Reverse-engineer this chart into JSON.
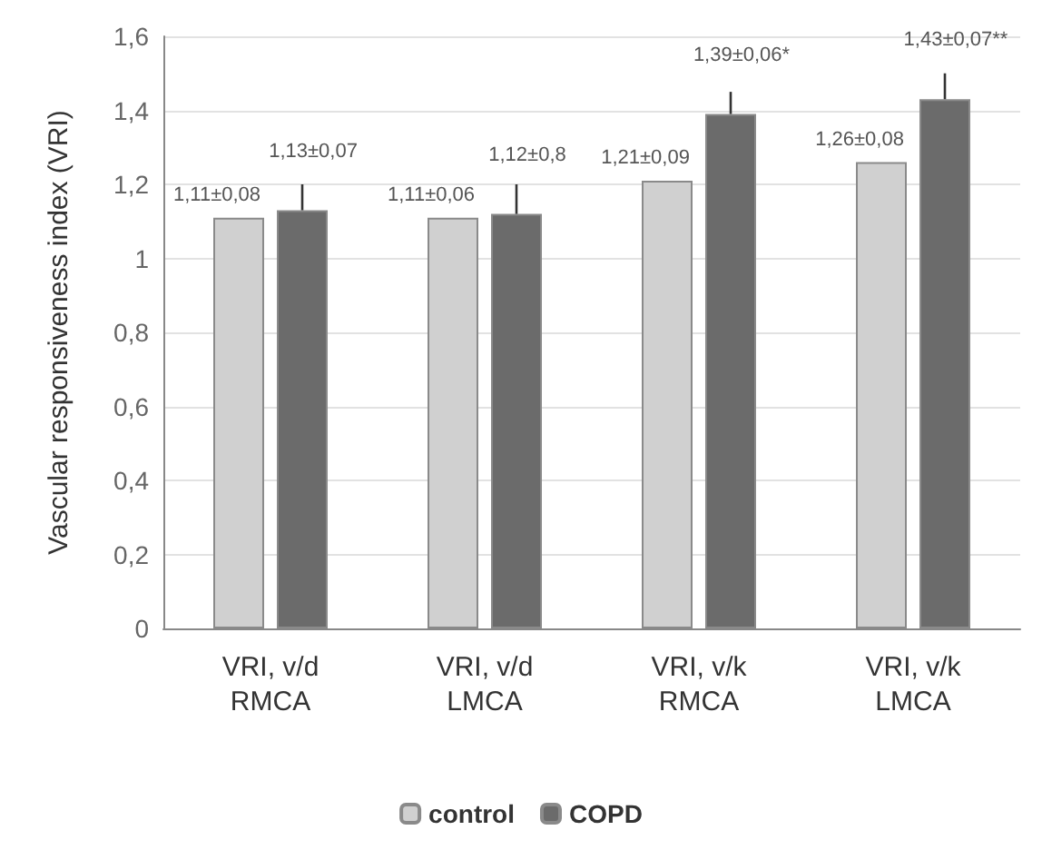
{
  "chart_data": {
    "type": "bar",
    "ylabel": "Vascular responsiveness index (VRI)",
    "categories": [
      "VRI, v/d\nRMCA",
      "VRI, v/d\nLMCA",
      "VRI, v/k\nRMCA",
      "VRI, v/k\nLMCA"
    ],
    "series": [
      {
        "name": "control",
        "color": "#d0d0d0",
        "values": [
          1.11,
          1.11,
          1.21,
          1.26
        ],
        "value_labels": [
          "1,11±0,08",
          "1,11±0,06",
          "1,21±0,09",
          "1,26±0,08"
        ]
      },
      {
        "name": "COPD",
        "color": "#6b6b6b",
        "values": [
          1.13,
          1.12,
          1.39,
          1.43
        ],
        "value_labels": [
          "1,13±0,07",
          "1,12±0,8",
          "1,39±0,06*",
          "1,43±0,07**"
        ],
        "errors": [
          [
            1.13,
            1.2
          ],
          [
            1.12,
            1.2
          ],
          [
            1.39,
            1.45
          ],
          [
            1.43,
            1.5
          ]
        ]
      }
    ],
    "ylim": [
      0,
      1.6
    ],
    "yticks": [
      0,
      {
        "value": 0.2,
        "label": "0,2"
      },
      {
        "value": 0.4,
        "label": "0,4"
      },
      {
        "value": 0.6,
        "label": "0,6"
      },
      {
        "value": 0.8,
        "label": "0,8"
      },
      1,
      {
        "value": 1.2,
        "label": "1,2"
      },
      {
        "value": 1.4,
        "label": "1,4"
      },
      {
        "value": 1.6,
        "label": "1,6"
      }
    ],
    "grid": "y",
    "legend": "bottom"
  }
}
